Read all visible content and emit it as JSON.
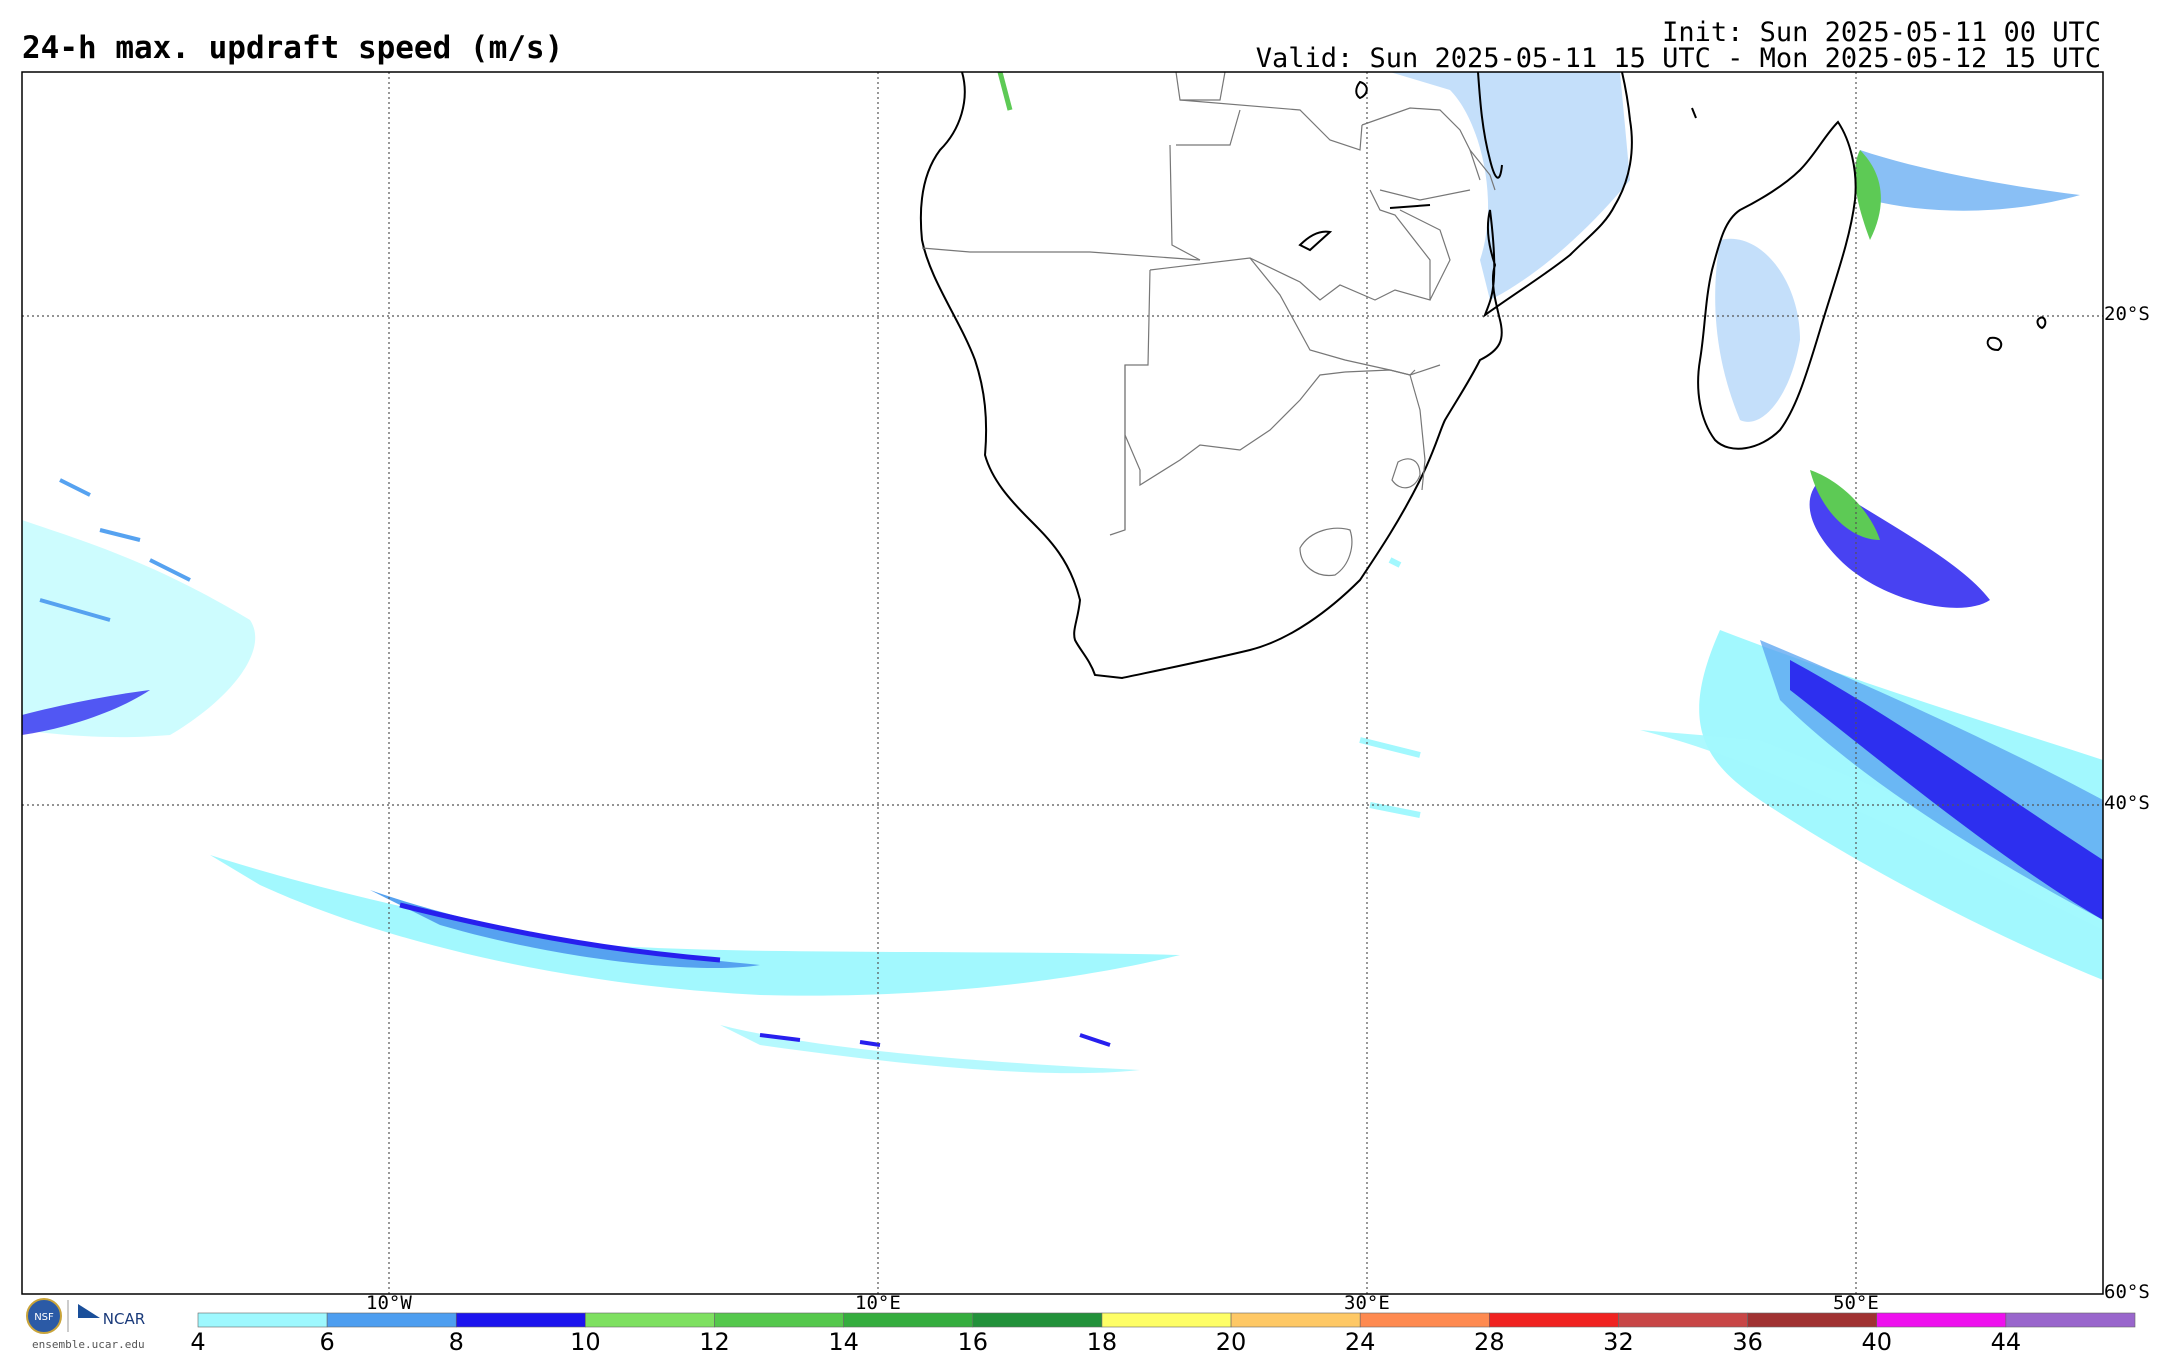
{
  "header": {
    "title": "24-h max. updraft speed (m/s)",
    "init": "Init: Sun 2025-05-11 00 UTC",
    "valid": "Valid: Sun 2025-05-11 15 UTC - Mon 2025-05-12 15 UTC"
  },
  "map": {
    "projection": "cylindrical",
    "lon_range": [
      -25,
      60
    ],
    "lat_range": [
      -60,
      -10
    ],
    "grid_lons": [
      -10,
      10,
      30,
      50
    ],
    "grid_lats": [
      -20,
      -40,
      -60
    ],
    "lon_labels": [
      "10°W",
      "10°E",
      "30°E",
      "50°E"
    ],
    "lat_labels": [
      "20°S",
      "40°S",
      "60°S"
    ]
  },
  "colorbar": {
    "levels": [
      "4",
      "6",
      "8",
      "10",
      "12",
      "14",
      "16",
      "18",
      "20",
      "24",
      "28",
      "32",
      "36",
      "40",
      "44"
    ],
    "colors": [
      "#9ef8fe",
      "#4d9ef0",
      "#1c14ee",
      "#7ee060",
      "#55c84c",
      "#35ad3e",
      "#22913a",
      "#fefe66",
      "#fec865",
      "#fe8a50",
      "#f02220",
      "#c84646",
      "#a03232",
      "#ee10ee",
      "#9966cc"
    ]
  },
  "logo": {
    "nsf": "NSF",
    "ncar": "NCAR",
    "url": "ensemble.ucar.edu"
  }
}
